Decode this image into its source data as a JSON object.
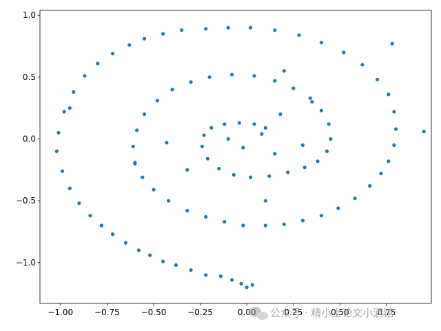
{
  "chart_data": {
    "type": "scatter",
    "title": "",
    "xlabel": "",
    "ylabel": "",
    "xlim": [
      -1.11,
      0.99
    ],
    "ylim": [
      -1.33,
      1.04
    ],
    "grid": false,
    "marker_color": "#1f77b4",
    "x_ticks": [
      -1.0,
      -0.75,
      -0.5,
      -0.25,
      0.0,
      0.25,
      0.5,
      0.75
    ],
    "x_tick_labels": [
      "−1.00",
      "−0.75",
      "−0.50",
      "−0.25",
      "0.00",
      "0.25",
      "0.50",
      "0.75"
    ],
    "y_ticks": [
      -1.0,
      -0.5,
      0.0,
      0.5,
      1.0
    ],
    "y_tick_labels": [
      "−1.0",
      "−0.5",
      "0.0",
      "0.5",
      "1.0"
    ],
    "series": [
      {
        "points": [
          [
            0.0,
            -1.2
          ],
          [
            0.03,
            -1.18
          ],
          [
            -0.03,
            -1.17
          ],
          [
            -0.08,
            -1.14
          ],
          [
            -0.14,
            -1.11
          ],
          [
            -0.22,
            -1.1
          ],
          [
            -0.3,
            -1.06
          ],
          [
            -0.38,
            -1.02
          ],
          [
            -0.45,
            -0.99
          ],
          [
            -0.52,
            -0.94
          ],
          [
            -0.58,
            -0.9
          ],
          [
            -0.65,
            -0.84
          ],
          [
            -0.72,
            -0.77
          ],
          [
            -0.78,
            -0.7
          ],
          [
            -0.84,
            -0.62
          ],
          [
            -0.9,
            -0.52
          ],
          [
            -0.95,
            -0.4
          ],
          [
            -0.99,
            -0.26
          ],
          [
            -1.02,
            -0.1
          ],
          [
            -1.01,
            0.05
          ],
          [
            -0.98,
            0.22
          ],
          [
            -0.93,
            0.38
          ],
          [
            -0.87,
            0.51
          ],
          [
            -0.8,
            0.61
          ],
          [
            -0.72,
            0.69
          ],
          [
            -0.63,
            0.76
          ],
          [
            -0.55,
            0.81
          ],
          [
            -0.45,
            0.85
          ],
          [
            -0.35,
            0.88
          ],
          [
            -0.22,
            0.89
          ],
          [
            -0.1,
            0.9
          ],
          [
            0.02,
            0.9
          ],
          [
            0.15,
            0.88
          ],
          [
            0.28,
            0.84
          ],
          [
            0.4,
            0.78
          ],
          [
            0.52,
            0.7
          ],
          [
            0.62,
            0.6
          ],
          [
            0.7,
            0.48
          ],
          [
            0.76,
            0.36
          ],
          [
            0.79,
            0.22
          ],
          [
            0.8,
            0.08
          ],
          [
            0.79,
            -0.05
          ],
          [
            0.76,
            -0.18
          ],
          [
            0.72,
            -0.28
          ],
          [
            0.66,
            -0.38
          ],
          [
            0.58,
            -0.48
          ],
          [
            0.49,
            -0.56
          ],
          [
            0.4,
            -0.62
          ],
          [
            0.3,
            -0.66
          ],
          [
            0.2,
            -0.69
          ],
          [
            0.1,
            -0.7
          ],
          [
            -0.02,
            -0.7
          ],
          [
            -0.12,
            -0.67
          ],
          [
            -0.22,
            -0.63
          ],
          [
            -0.32,
            -0.58
          ],
          [
            -0.42,
            -0.5
          ],
          [
            -0.5,
            -0.41
          ],
          [
            -0.56,
            -0.31
          ],
          [
            -0.6,
            -0.19
          ],
          [
            -0.61,
            -0.06
          ],
          [
            -0.59,
            0.07
          ],
          [
            -0.55,
            0.2
          ],
          [
            -0.48,
            0.31
          ],
          [
            -0.4,
            0.4
          ],
          [
            -0.3,
            0.46
          ],
          [
            -0.2,
            0.5
          ],
          [
            -0.08,
            0.52
          ],
          [
            0.04,
            0.51
          ],
          [
            0.15,
            0.47
          ],
          [
            0.25,
            0.41
          ],
          [
            0.34,
            0.33
          ],
          [
            0.4,
            0.23
          ],
          [
            0.44,
            0.12
          ],
          [
            0.45,
            0.0
          ],
          [
            0.43,
            -0.1
          ],
          [
            0.38,
            -0.18
          ],
          [
            0.31,
            -0.23
          ],
          [
            0.22,
            -0.27
          ],
          [
            0.12,
            -0.3
          ],
          [
            0.02,
            -0.31
          ],
          [
            -0.07,
            -0.29
          ],
          [
            -0.15,
            -0.24
          ],
          [
            -0.21,
            -0.16
          ],
          [
            -0.24,
            -0.06
          ],
          [
            -0.23,
            0.03
          ],
          [
            -0.19,
            0.09
          ],
          [
            -0.12,
            0.12
          ],
          [
            -0.04,
            0.13
          ],
          [
            0.04,
            0.12
          ],
          [
            0.1,
            0.09
          ],
          [
            0.78,
            0.77
          ],
          [
            0.95,
            0.06
          ],
          [
            -0.95,
            0.25
          ],
          [
            -0.43,
            -0.03
          ],
          [
            0.3,
            -0.05
          ],
          [
            0.15,
            -0.12
          ],
          [
            -0.1,
            0.0
          ],
          [
            0.08,
            0.04
          ],
          [
            -0.02,
            -0.07
          ],
          [
            0.18,
            0.2
          ],
          [
            -0.6,
            -0.2
          ],
          [
            0.35,
            0.3
          ],
          [
            -0.32,
            -0.25
          ],
          [
            0.1,
            -0.5
          ],
          [
            0.2,
            0.55
          ]
        ]
      }
    ]
  },
  "watermark": {
    "icon": "wechat-bubble-icon",
    "text": "公众号 · 精小上论文小酒馆"
  }
}
